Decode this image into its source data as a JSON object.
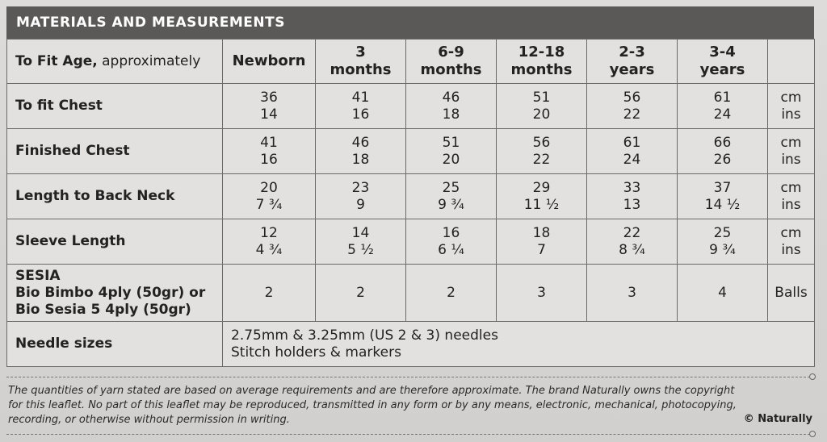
{
  "title": "MATERIALS AND MEASUREMENTS",
  "head": {
    "label_bold": "To Fit Age,",
    "label_normal": " approximately",
    "ages": [
      {
        "l1": "Newborn",
        "l2": ""
      },
      {
        "l1": "3",
        "l2": "months"
      },
      {
        "l1": "6-9",
        "l2": "months"
      },
      {
        "l1": "12-18",
        "l2": "months"
      },
      {
        "l1": "2-3",
        "l2": "years"
      },
      {
        "l1": "3-4",
        "l2": "years"
      }
    ]
  },
  "rows": [
    {
      "label": "To fit Chest",
      "top": [
        "36",
        "41",
        "46",
        "51",
        "56",
        "61"
      ],
      "bottom": [
        "14",
        "16",
        "18",
        "20",
        "22",
        "24"
      ],
      "unit_top": "cm",
      "unit_bottom": "ins"
    },
    {
      "label": "Finished Chest",
      "top": [
        "41",
        "46",
        "51",
        "56",
        "61",
        "66"
      ],
      "bottom": [
        "16",
        "18",
        "20",
        "22",
        "24",
        "26"
      ],
      "unit_top": "cm",
      "unit_bottom": "ins"
    },
    {
      "label": "Length to Back Neck",
      "top": [
        "20",
        "23",
        "25",
        "29",
        "33",
        "37"
      ],
      "bottom": [
        "7 ¾",
        "9",
        "9 ¾",
        "11 ½",
        "13",
        "14 ½"
      ],
      "unit_top": "cm",
      "unit_bottom": "ins"
    },
    {
      "label": "Sleeve Length",
      "top": [
        "12",
        "14",
        "16",
        "18",
        "22",
        "25"
      ],
      "bottom": [
        "4 ¾",
        "5 ½",
        "6 ¼",
        "7",
        "8 ¾",
        "9 ¾"
      ],
      "unit_top": "cm",
      "unit_bottom": "ins"
    }
  ],
  "yarn": {
    "l1": "SESIA",
    "l2": "Bio Bimbo 4ply (50gr) or",
    "l3": "Bio Sesia 5 4ply (50gr)",
    "values": [
      "2",
      "2",
      "2",
      "3",
      "3",
      "4"
    ],
    "unit": "Balls"
  },
  "needles": {
    "label": "Needle sizes",
    "line1": "2.75mm & 3.25mm (US 2 & 3) needles",
    "line2": "Stitch holders & markers"
  },
  "footnote": {
    "line1": "The quantities of yarn stated are based on average requirements and are therefore approximate. The brand Naturally owns the copyright",
    "line2": "for this leaflet. No part of this leaflet may be reproduced, transmitted in any form or by any means, electronic, mechanical, photocopying,",
    "line3": "recording, or otherwise without permission in writing."
  },
  "copyright": "© Naturally"
}
